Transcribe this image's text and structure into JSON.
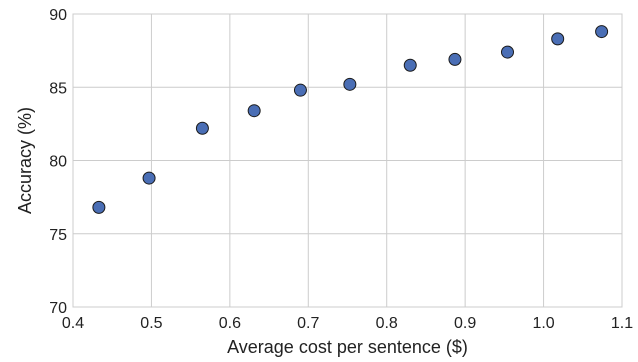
{
  "chart_data": {
    "type": "scatter",
    "title": "",
    "xlabel": "Average cost per sentence ($)",
    "ylabel": "Accuracy (%)",
    "xlim": [
      0.4,
      1.1
    ],
    "ylim": [
      70,
      90
    ],
    "xticks": [
      0.4,
      0.5,
      0.6,
      0.7,
      0.8,
      0.9,
      1.0,
      1.1
    ],
    "xtick_labels": [
      "0.4",
      "0.5",
      "0.6",
      "0.7",
      "0.8",
      "0.9",
      "1.0",
      "1.1"
    ],
    "yticks": [
      70,
      75,
      80,
      85,
      90
    ],
    "ytick_labels": [
      "70",
      "75",
      "80",
      "85",
      "90"
    ],
    "grid": true,
    "marker_color": "#4a6eb5",
    "series": [
      {
        "x": [
          0.433,
          0.497,
          0.565,
          0.631,
          0.69,
          0.753,
          0.83,
          0.887,
          0.954,
          1.018,
          1.074
        ],
        "y": [
          76.8,
          78.8,
          82.2,
          83.4,
          84.8,
          85.2,
          86.5,
          86.9,
          87.4,
          88.3,
          88.8
        ]
      }
    ]
  }
}
